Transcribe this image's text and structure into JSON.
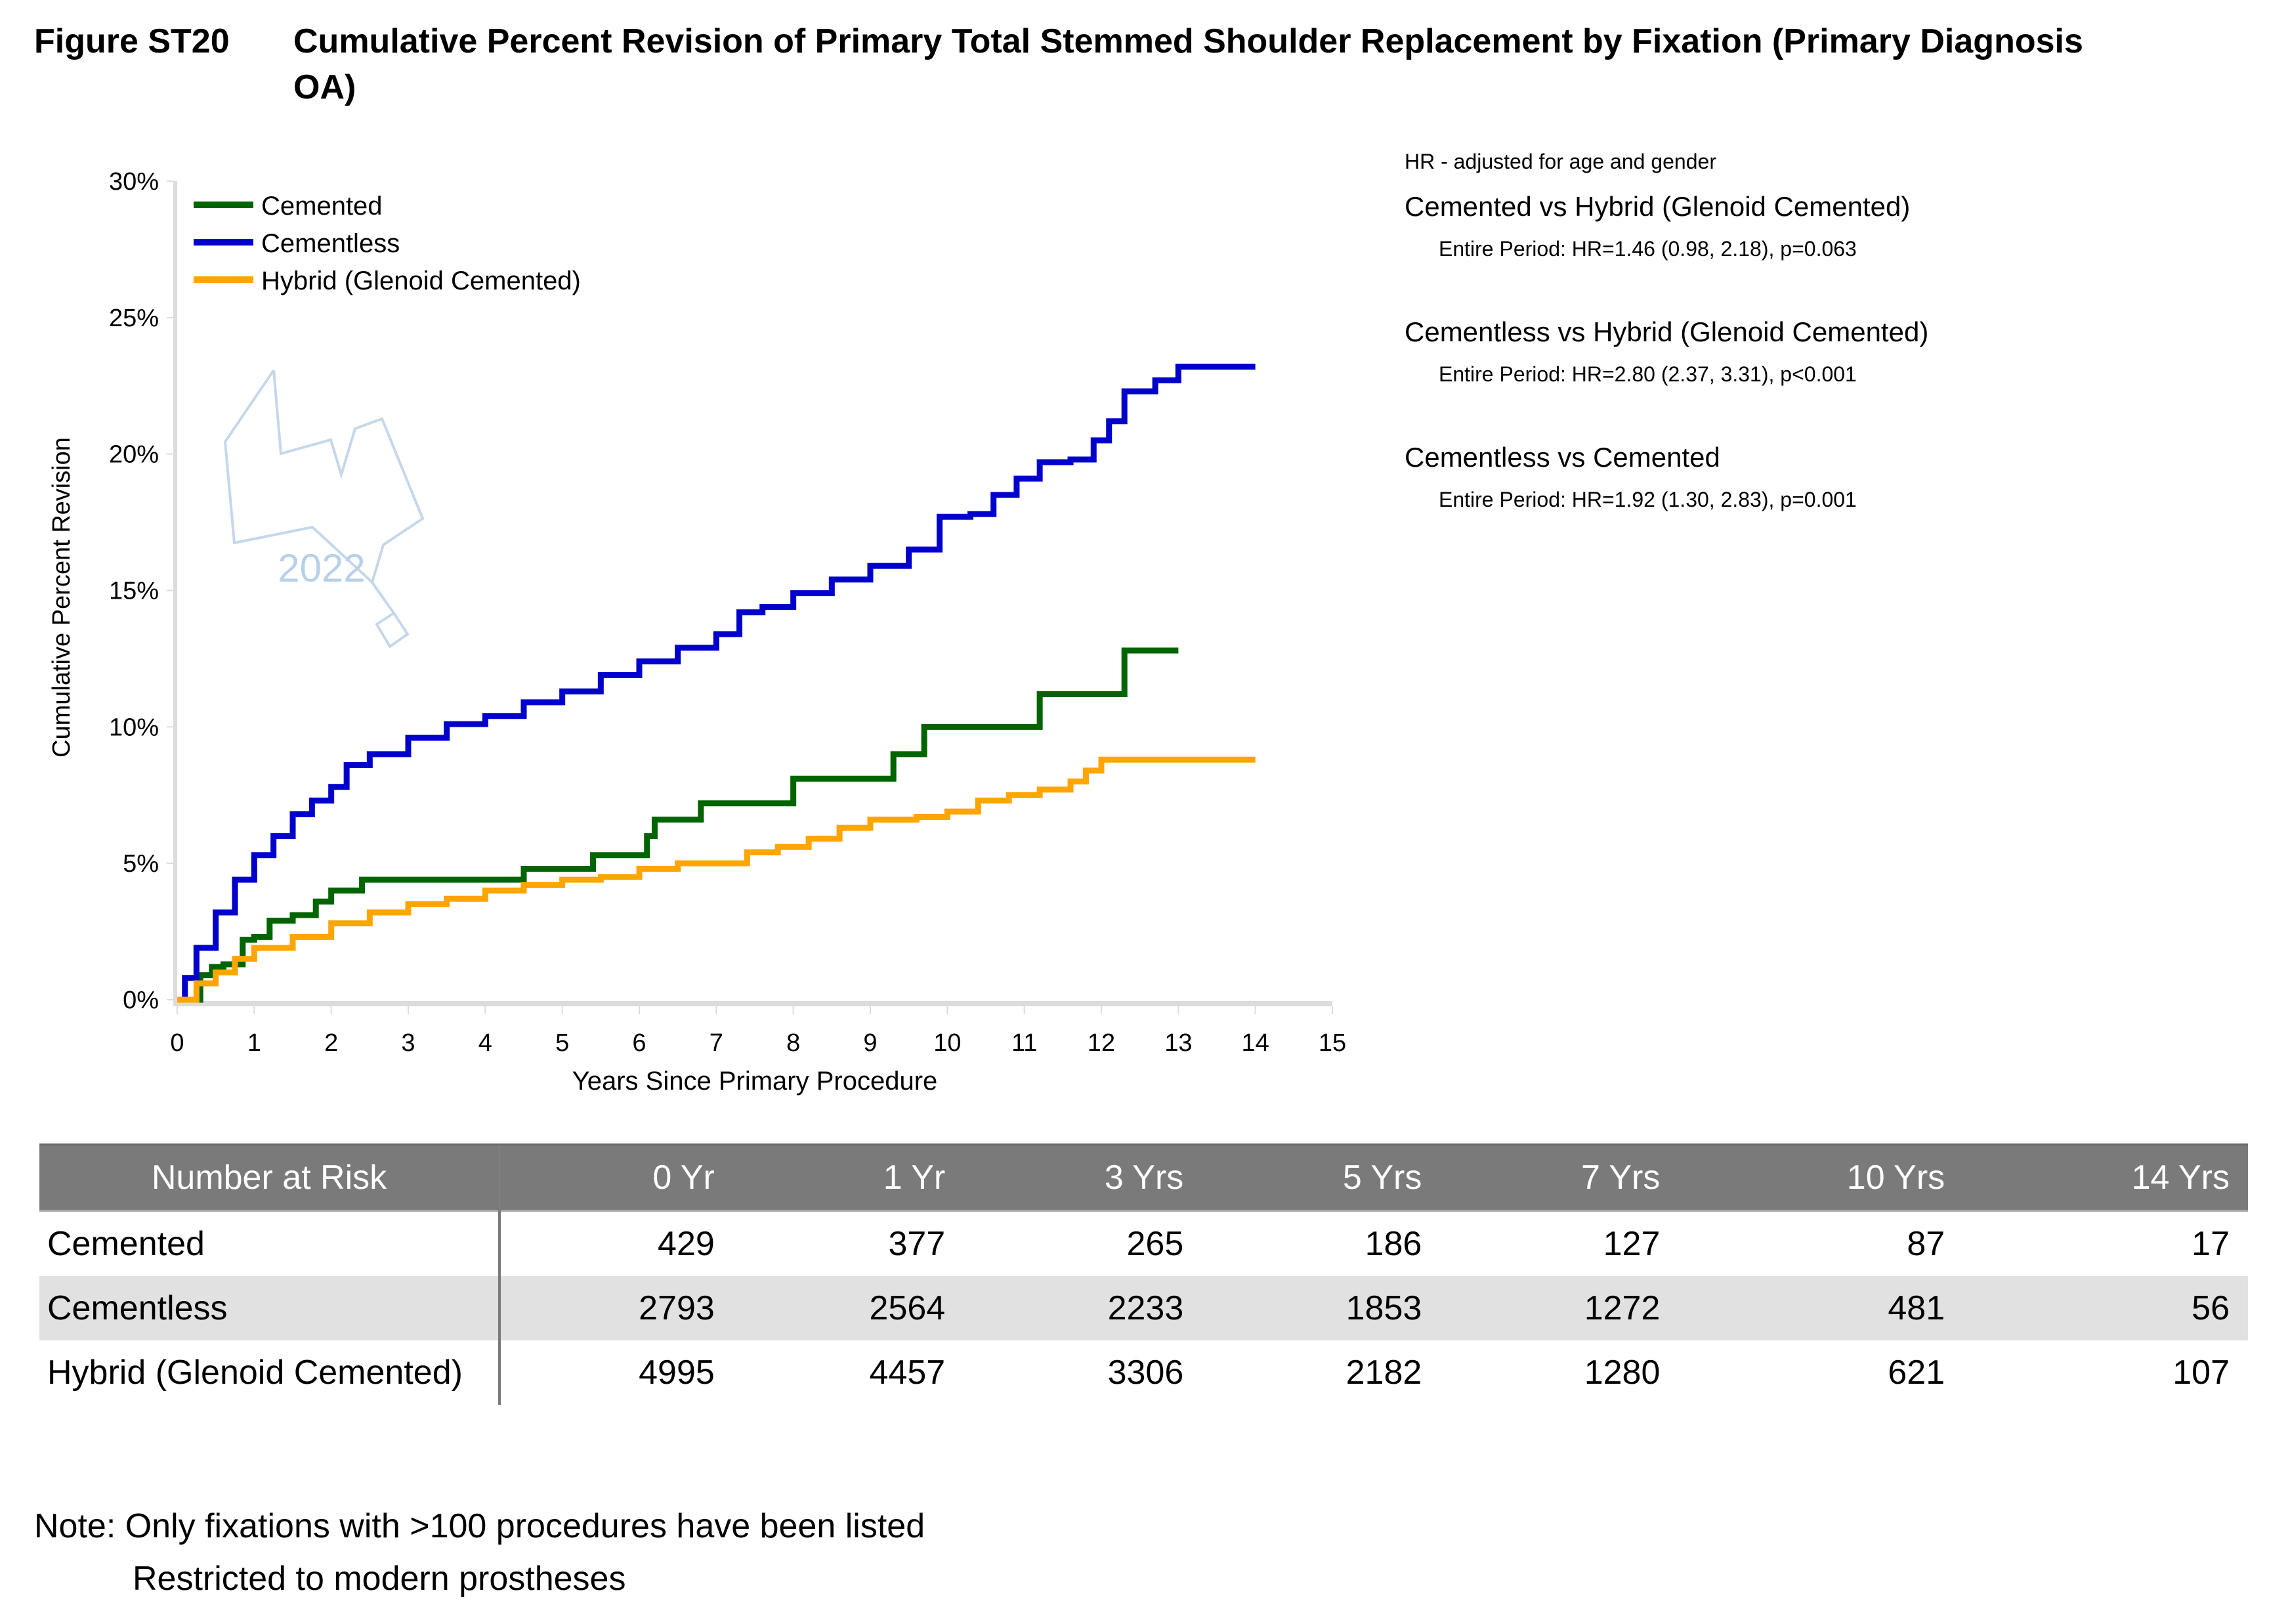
{
  "figure": {
    "number": "Figure ST20",
    "title": "Cumulative Percent Revision of Primary Total Stemmed Shoulder Replacement by Fixation (Primary Diagnosis OA)"
  },
  "watermark": {
    "text": "2022"
  },
  "hr": {
    "note": "HR - adjusted for age and gender",
    "comparisons": [
      {
        "label": "Cemented vs Hybrid (Glenoid Cemented)",
        "value": "Entire Period: HR=1.46 (0.98, 2.18), p=0.063"
      },
      {
        "label": "Cementless vs Hybrid (Glenoid Cemented)",
        "value": "Entire Period: HR=2.80 (2.37, 3.31), p<0.001"
      },
      {
        "label": "Cementless vs Cemented",
        "value": "Entire Period: HR=1.92 (1.30, 2.83), p=0.001"
      }
    ]
  },
  "chart_data": {
    "type": "line",
    "step": true,
    "title": "",
    "xlabel": "Years Since Primary Procedure",
    "ylabel": "Cumulative Percent Revision",
    "xlim": [
      0,
      15
    ],
    "ylim": [
      0,
      30
    ],
    "xticks": [
      "0",
      "1",
      "2",
      "3",
      "4",
      "5",
      "6",
      "7",
      "8",
      "9",
      "10",
      "11",
      "12",
      "13",
      "14",
      "15"
    ],
    "yticks": [
      "0%",
      "5%",
      "10%",
      "15%",
      "20%",
      "25%",
      "30%"
    ],
    "grid": false,
    "legend_position": "top-left",
    "series": [
      {
        "name": "Cemented",
        "color": "#006400",
        "x": [
          0,
          0.3,
          0.45,
          0.6,
          0.85,
          1.0,
          1.2,
          1.5,
          1.8,
          2.0,
          2.4,
          4.5,
          5.4,
          6.1,
          6.2,
          6.8,
          8.0,
          9.3,
          9.7,
          11.2,
          12.3,
          13.0
        ],
        "y": [
          0,
          0.9,
          1.2,
          1.3,
          2.2,
          2.3,
          2.9,
          3.1,
          3.6,
          4.0,
          4.4,
          4.8,
          5.3,
          6.0,
          6.6,
          7.2,
          8.1,
          9.0,
          10.0,
          11.2,
          12.8,
          12.8
        ]
      },
      {
        "name": "Cementless",
        "color": "#0000CD",
        "x": [
          0,
          0.1,
          0.25,
          0.5,
          0.75,
          1.0,
          1.25,
          1.5,
          1.75,
          2.0,
          2.2,
          2.5,
          3.0,
          3.5,
          4.0,
          4.5,
          5.0,
          5.5,
          6.0,
          6.5,
          7.0,
          7.3,
          7.6,
          8.0,
          8.5,
          9.0,
          9.5,
          9.9,
          10.3,
          10.6,
          10.9,
          11.2,
          11.6,
          11.9,
          12.1,
          12.3,
          12.7,
          13.0,
          14.0
        ],
        "y": [
          0,
          0.8,
          1.9,
          3.2,
          4.4,
          5.3,
          6.0,
          6.8,
          7.3,
          7.8,
          8.6,
          9.0,
          9.6,
          10.1,
          10.4,
          10.9,
          11.3,
          11.9,
          12.4,
          12.9,
          13.4,
          14.2,
          14.4,
          14.9,
          15.4,
          15.9,
          16.5,
          17.7,
          17.8,
          18.5,
          19.1,
          19.7,
          19.8,
          20.5,
          21.2,
          22.3,
          22.7,
          23.2,
          23.2
        ]
      },
      {
        "name": "Hybrid (Glenoid Cemented)",
        "color": "#FFA500",
        "x": [
          0,
          0.25,
          0.5,
          0.75,
          1.0,
          1.5,
          2.0,
          2.5,
          3.0,
          3.5,
          4.0,
          4.5,
          5.0,
          5.5,
          6.0,
          6.5,
          7.0,
          7.4,
          7.8,
          8.2,
          8.6,
          9.0,
          9.6,
          10.0,
          10.4,
          10.8,
          11.2,
          11.6,
          11.8,
          12.0,
          13.0,
          14.0
        ],
        "y": [
          0,
          0.6,
          1.0,
          1.5,
          1.9,
          2.3,
          2.8,
          3.2,
          3.5,
          3.7,
          4.0,
          4.2,
          4.4,
          4.5,
          4.8,
          5.0,
          5.0,
          5.4,
          5.6,
          5.9,
          6.3,
          6.6,
          6.7,
          6.9,
          7.3,
          7.5,
          7.7,
          8.0,
          8.4,
          8.8,
          8.8,
          8.8
        ]
      }
    ]
  },
  "risk_table": {
    "header": [
      "Number at Risk",
      "0 Yr",
      "1 Yr",
      "3 Yrs",
      "5 Yrs",
      "7 Yrs",
      "10 Yrs",
      "14 Yrs"
    ],
    "rows": [
      {
        "label": "Cemented",
        "values": [
          "429",
          "377",
          "265",
          "186",
          "127",
          "87",
          "17"
        ]
      },
      {
        "label": "Cementless",
        "values": [
          "2793",
          "2564",
          "2233",
          "1853",
          "1272",
          "481",
          "56"
        ]
      },
      {
        "label": "Hybrid (Glenoid Cemented)",
        "values": [
          "4995",
          "4457",
          "3306",
          "2182",
          "1280",
          "621",
          "107"
        ]
      }
    ],
    "header_bg": "#7a7a7a",
    "shade_bg": "#e1e1e1"
  },
  "note": {
    "line1": "Note: Only fixations with >100 procedures have been listed",
    "line2": "Restricted to modern prostheses"
  }
}
